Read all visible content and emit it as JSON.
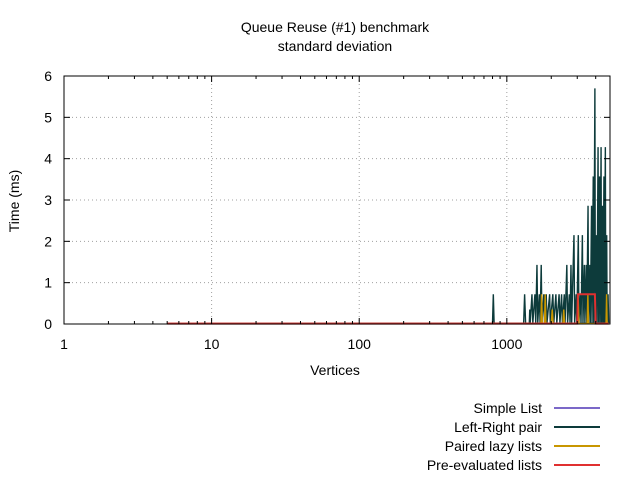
{
  "chart_data": {
    "type": "line",
    "title": "Queue Reuse (#1) benchmark",
    "subtitle": "standard deviation",
    "xlabel": "Vertices",
    "ylabel": "Time (ms)",
    "x_scale": "log",
    "xlim": [
      1,
      5000
    ],
    "ylim": [
      0,
      6
    ],
    "x_ticks": [
      1,
      10,
      100,
      1000
    ],
    "x_tick_labels": [
      "1",
      "10",
      "100",
      "1000"
    ],
    "y_ticks": [
      0,
      1,
      2,
      3,
      4,
      5,
      6
    ],
    "y_tick_labels": [
      "0",
      "1",
      "2",
      "3",
      "4",
      "5",
      "6"
    ],
    "grid": true,
    "legend_position": "bottom-right",
    "series": [
      {
        "name": "Simple List",
        "color": "#7b68c8",
        "points": [
          [
            5,
            0.01
          ],
          [
            100,
            0.01
          ],
          [
            1000,
            0.01
          ],
          [
            2000,
            0.02
          ],
          [
            3000,
            0.02
          ],
          [
            4000,
            0.03
          ],
          [
            4900,
            0.03
          ]
        ]
      },
      {
        "name": "Left-Right pair",
        "color": "#0d3b3b",
        "points": [
          [
            5,
            0.01
          ],
          [
            800,
            0.02
          ],
          [
            810,
            0.72
          ],
          [
            820,
            0.02
          ],
          [
            1000,
            0.02
          ],
          [
            1300,
            0.02
          ],
          [
            1320,
            0.72
          ],
          [
            1340,
            0.02
          ],
          [
            1420,
            0.02
          ],
          [
            1430,
            0.35
          ],
          [
            1440,
            0.02
          ],
          [
            1480,
            0.72
          ],
          [
            1500,
            0.02
          ],
          [
            1550,
            0.72
          ],
          [
            1570,
            0.02
          ],
          [
            1600,
            1.43
          ],
          [
            1620,
            0.02
          ],
          [
            1660,
            0.72
          ],
          [
            1680,
            0.02
          ],
          [
            1710,
            1.43
          ],
          [
            1730,
            0.02
          ],
          [
            1780,
            0.72
          ],
          [
            1800,
            0.02
          ],
          [
            1850,
            0.72
          ],
          [
            1870,
            0.02
          ],
          [
            1950,
            0.72
          ],
          [
            1970,
            0.02
          ],
          [
            2050,
            0.72
          ],
          [
            2080,
            0.02
          ],
          [
            2150,
            0.72
          ],
          [
            2180,
            0.02
          ],
          [
            2260,
            0.72
          ],
          [
            2290,
            0.02
          ],
          [
            2350,
            0.72
          ],
          [
            2380,
            0.02
          ],
          [
            2450,
            0.72
          ],
          [
            2480,
            0.02
          ],
          [
            2550,
            1.43
          ],
          [
            2580,
            0.02
          ],
          [
            2650,
            0.72
          ],
          [
            2680,
            0.02
          ],
          [
            2720,
            1.43
          ],
          [
            2750,
            0.02
          ],
          [
            2850,
            2.15
          ],
          [
            2880,
            0.02
          ],
          [
            2950,
            0.72
          ],
          [
            2980,
            0.02
          ],
          [
            3050,
            2.15
          ],
          [
            3080,
            0.02
          ],
          [
            3150,
            0.72
          ],
          [
            3180,
            0.02
          ],
          [
            3250,
            2.15
          ],
          [
            3280,
            0.02
          ],
          [
            3350,
            1.43
          ],
          [
            3380,
            0.02
          ],
          [
            3450,
            1.43
          ],
          [
            3480,
            0.02
          ],
          [
            3550,
            2.86
          ],
          [
            3580,
            0.02
          ],
          [
            3650,
            1.43
          ],
          [
            3680,
            0.02
          ],
          [
            3750,
            2.86
          ],
          [
            3780,
            0.02
          ],
          [
            3850,
            3.57
          ],
          [
            3880,
            0.02
          ],
          [
            3950,
            5.7
          ],
          [
            3980,
            0.02
          ],
          [
            4050,
            2.15
          ],
          [
            4080,
            0.02
          ],
          [
            4150,
            4.28
          ],
          [
            4180,
            0.02
          ],
          [
            4250,
            3.57
          ],
          [
            4280,
            0.02
          ],
          [
            4350,
            4.28
          ],
          [
            4380,
            0.02
          ],
          [
            4450,
            2.86
          ],
          [
            4480,
            0.02
          ],
          [
            4550,
            3.57
          ],
          [
            4580,
            0.02
          ],
          [
            4650,
            4.28
          ],
          [
            4680,
            0.02
          ],
          [
            4750,
            2.15
          ],
          [
            4780,
            0.02
          ],
          [
            4850,
            0.72
          ],
          [
            4900,
            0.02
          ]
        ]
      },
      {
        "name": "Paired lazy lists",
        "color": "#c89600",
        "points": [
          [
            5,
            0.01
          ],
          [
            1700,
            0.01
          ],
          [
            1720,
            0.72
          ],
          [
            1740,
            0.01
          ],
          [
            1800,
            0.01
          ],
          [
            1820,
            0.72
          ],
          [
            1840,
            0.01
          ],
          [
            2000,
            0.01
          ],
          [
            2030,
            0.35
          ],
          [
            2060,
            0.01
          ],
          [
            2400,
            0.01
          ],
          [
            2430,
            0.35
          ],
          [
            2460,
            0.01
          ],
          [
            3000,
            0.01
          ],
          [
            3040,
            0.72
          ],
          [
            3080,
            0.01
          ],
          [
            3500,
            0.01
          ],
          [
            3540,
            0.72
          ],
          [
            3580,
            0.01
          ],
          [
            4700,
            0.01
          ],
          [
            4740,
            0.72
          ],
          [
            4780,
            0.01
          ]
        ]
      },
      {
        "name": "Pre-evaluated lists",
        "color": "#e03030",
        "points": [
          [
            5,
            0.01
          ],
          [
            3000,
            0.01
          ],
          [
            3030,
            0.72
          ],
          [
            3060,
            0.72
          ],
          [
            3090,
            0.72
          ],
          [
            3150,
            0.72
          ],
          [
            3250,
            0.72
          ],
          [
            3350,
            0.72
          ],
          [
            3450,
            0.72
          ],
          [
            3550,
            0.72
          ],
          [
            3650,
            0.72
          ],
          [
            3750,
            0.72
          ],
          [
            3850,
            0.72
          ],
          [
            3950,
            0.72
          ],
          [
            4000,
            0.01
          ],
          [
            4900,
            0.01
          ]
        ]
      }
    ]
  }
}
